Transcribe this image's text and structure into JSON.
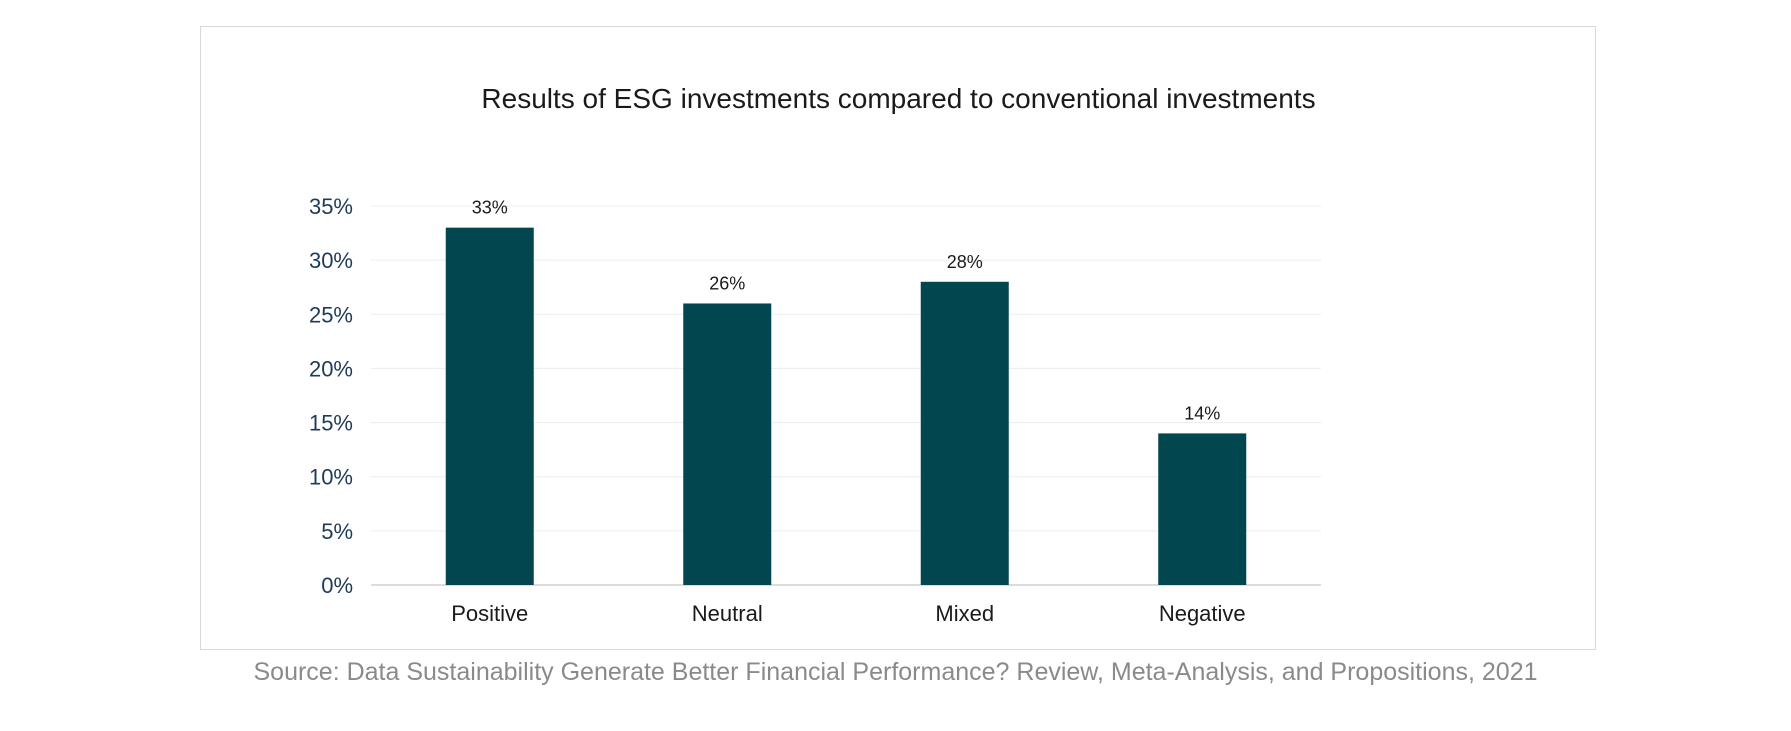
{
  "chart_data": {
    "type": "bar",
    "title": "Results of ESG investments compared to conventional investments",
    "categories": [
      "Positive",
      "Neutral",
      "Mixed",
      "Negative"
    ],
    "values": [
      33,
      26,
      28,
      14
    ],
    "data_labels": [
      "33%",
      "26%",
      "28%",
      "14%"
    ],
    "y_ticks": [
      "0%",
      "5%",
      "10%",
      "15%",
      "20%",
      "25%",
      "30%",
      "35%"
    ],
    "ylim": [
      0,
      35
    ],
    "y_step": 5,
    "xlabel": "",
    "ylabel": "",
    "grid": true,
    "legend": "none",
    "bar_color": "#02474f"
  },
  "source": "Source: Data Sustainability Generate Better Financial Performance? Review, Meta-Analysis, and Propositions, 2021"
}
